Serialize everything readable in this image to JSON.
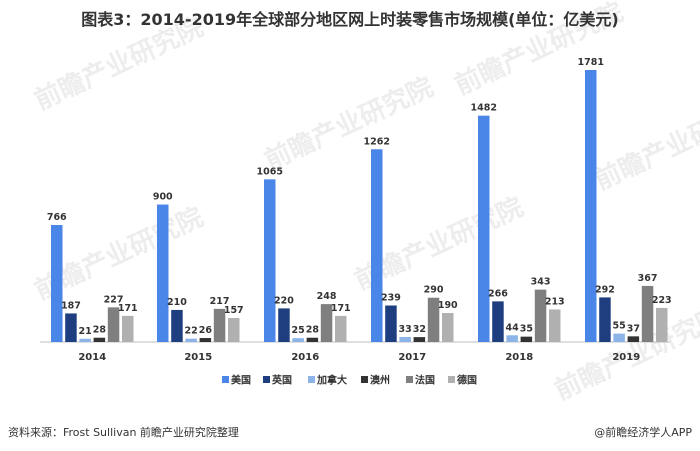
{
  "chart_data": {
    "type": "bar",
    "title": "图表3：2014-2019年全球部分地区网上时装零售市场规模(单位：亿美元)",
    "categories": [
      "2014",
      "2015",
      "2016",
      "2017",
      "2018",
      "2019"
    ],
    "series": [
      {
        "name": "美国",
        "color": "#4a86e8",
        "values": [
          766,
          900,
          1065,
          1262,
          1482,
          1781
        ]
      },
      {
        "name": "英国",
        "color": "#1f3e80",
        "values": [
          187,
          210,
          220,
          239,
          266,
          292
        ]
      },
      {
        "name": "加拿大",
        "color": "#8cb4e8",
        "values": [
          21,
          22,
          25,
          33,
          44,
          55
        ]
      },
      {
        "name": "澳州",
        "color": "#333333",
        "values": [
          28,
          26,
          28,
          32,
          35,
          37
        ]
      },
      {
        "name": "法国",
        "color": "#7f7f7f",
        "values": [
          227,
          217,
          248,
          290,
          343,
          367
        ]
      },
      {
        "name": "德国",
        "color": "#b0b0b0",
        "values": [
          171,
          157,
          171,
          190,
          213,
          223
        ]
      }
    ],
    "legend_position": "bottom",
    "grid": false
  },
  "footer": {
    "source": "资料来源：Frost Sullivan 前瞻产业研究院整理",
    "brand": "@前瞻经济学人APP"
  },
  "watermark": "前瞻产业研究院"
}
